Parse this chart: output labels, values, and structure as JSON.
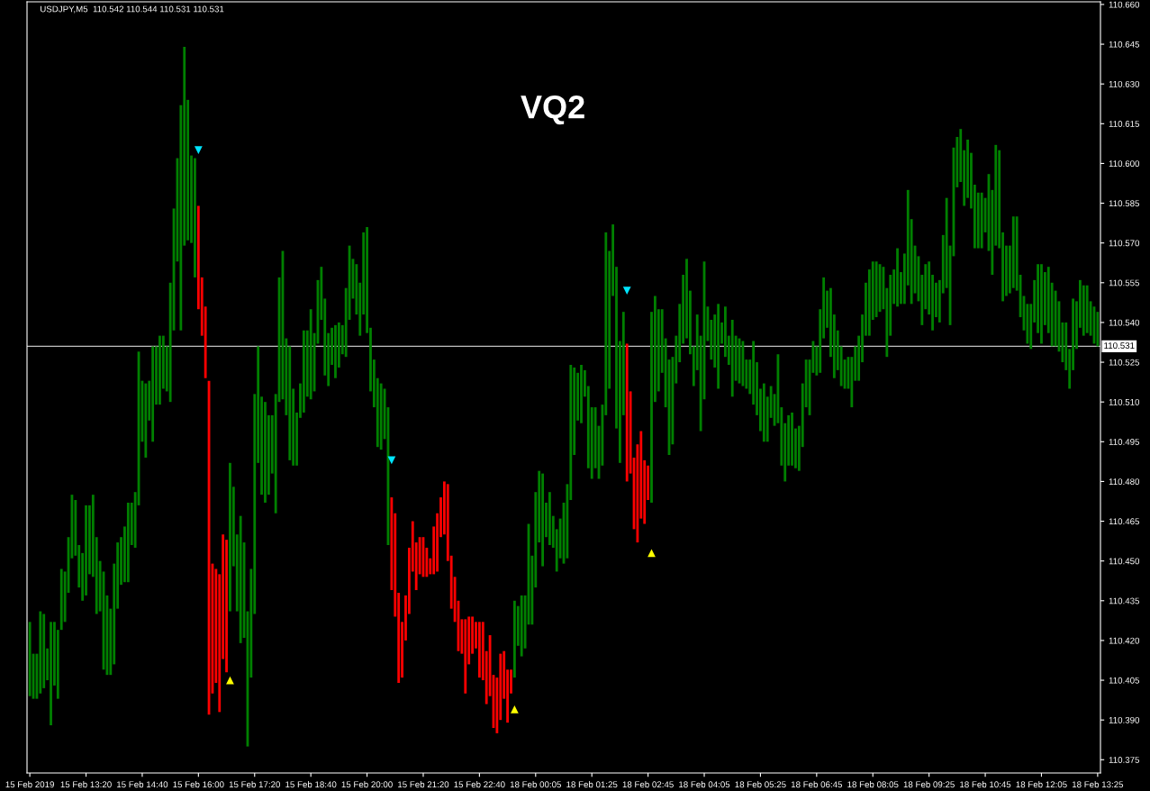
{
  "chart_data": {
    "type": "bar",
    "title": "VQ2",
    "annotations": [
      "USDJPY,M5  110.542 110.544 110.531 110.531"
    ],
    "categories": [
      "15 Feb 2019",
      null,
      null,
      null,
      null,
      null,
      null,
      null,
      null,
      null,
      null,
      null,
      null,
      null,
      null,
      null,
      "15 Feb 13:20",
      null,
      null,
      null,
      null,
      null,
      null,
      null,
      null,
      null,
      null,
      null,
      null,
      null,
      null,
      null,
      "15 Feb 14:40",
      null,
      null,
      null,
      null,
      null,
      null,
      null,
      null,
      null,
      null,
      null,
      null,
      null,
      null,
      null,
      "15 Feb 16:00",
      null,
      null,
      null,
      null,
      null,
      null,
      null,
      null,
      null,
      null,
      null,
      null,
      null,
      null,
      null,
      "15 Feb 17:20",
      null,
      null,
      null,
      null,
      null,
      null,
      null,
      null,
      null,
      null,
      null,
      null,
      null,
      null,
      null,
      "15 Feb 18:40",
      null,
      null,
      null,
      null,
      null,
      null,
      null,
      null,
      null,
      null,
      null,
      null,
      null,
      null,
      null,
      "15 Feb 20:00",
      null,
      null,
      null,
      null,
      null,
      null,
      null,
      null,
      null,
      null,
      null,
      null,
      null,
      null,
      null,
      "15 Feb 21:20",
      null,
      null,
      null,
      null,
      null,
      null,
      null,
      null,
      null,
      null,
      null,
      null,
      null,
      null,
      null,
      "15 Feb 22:40",
      null,
      null,
      null,
      null,
      null,
      null,
      null,
      null,
      null,
      null,
      null,
      null,
      null,
      null,
      null,
      "18 Feb 00:05",
      null,
      null,
      null,
      null,
      null,
      null,
      null,
      null,
      null,
      null,
      null,
      null,
      null,
      null,
      null,
      "18 Feb 01:25",
      null,
      null,
      null,
      null,
      null,
      null,
      null,
      null,
      null,
      null,
      null,
      null,
      null,
      null,
      null,
      "18 Feb 02:45",
      null,
      null,
      null,
      null,
      null,
      null,
      null,
      null,
      null,
      null,
      null,
      null,
      null,
      null,
      null,
      "18 Feb 04:05",
      null,
      null,
      null,
      null,
      null,
      null,
      null,
      null,
      null,
      null,
      null,
      null,
      null,
      null,
      null,
      "18 Feb 05:25",
      null,
      null,
      null,
      null,
      null,
      null,
      null,
      null,
      null,
      null,
      null,
      null,
      null,
      null,
      null,
      "18 Feb 06:45",
      null,
      null,
      null,
      null,
      null,
      null,
      null,
      null,
      null,
      null,
      null,
      null,
      null,
      null,
      null,
      "18 Feb 08:05",
      null,
      null,
      null,
      null,
      null,
      null,
      null,
      null,
      null,
      null,
      null,
      null,
      null,
      null,
      null,
      "18 Feb 09:25",
      null,
      null,
      null,
      null,
      null,
      null,
      null,
      null,
      null,
      null,
      null,
      null,
      null,
      null,
      null,
      "18 Feb 10:45",
      null,
      null,
      null,
      null,
      null,
      null,
      null,
      null,
      null,
      null,
      null,
      null,
      null,
      null,
      null,
      "18 Feb 12:05",
      null,
      null,
      null,
      null,
      null,
      null,
      null,
      null,
      null,
      null,
      null,
      null,
      null,
      null,
      null,
      "18 Feb 13:25"
    ],
    "series": [
      {
        "base": [
          110.399,
          110.398,
          110.398,
          110.4,
          110.402,
          110.405,
          110.388,
          110.403,
          110.398,
          110.424,
          110.427,
          110.438,
          110.451,
          110.452,
          110.44,
          110.435,
          110.437,
          110.445,
          110.444,
          110.43,
          110.431,
          110.409,
          110.407,
          110.407,
          110.411,
          110.432,
          110.441,
          110.442,
          110.442,
          110.456,
          110.455,
          110.471,
          110.495,
          110.489,
          110.503,
          110.495,
          110.509,
          110.509,
          110.515,
          110.514,
          110.51,
          110.537,
          110.563,
          110.537,
          110.569,
          110.571,
          110.57,
          110.557,
          110.545,
          110.535,
          110.519,
          110.392,
          110.4,
          110.404,
          110.393,
          110.413,
          110.408,
          110.431,
          110.448,
          110.431,
          110.419,
          110.421,
          110.38,
          110.406,
          110.43,
          110.487,
          110.475,
          110.472,
          110.475,
          110.483,
          110.468,
          110.51,
          110.511,
          110.505,
          110.488,
          110.486,
          110.486,
          110.504,
          110.506,
          110.512,
          110.511,
          110.514,
          110.532,
          110.541,
          110.52,
          110.516,
          110.524,
          110.519,
          110.523,
          110.528,
          110.527,
          110.541,
          110.549,
          110.543,
          110.535,
          110.543,
          110.536,
          110.514,
          110.508,
          110.493,
          110.492,
          110.496,
          110.456,
          110.439,
          110.429,
          110.404,
          110.406,
          110.42,
          110.43,
          110.446,
          110.439,
          110.445,
          110.444,
          110.444,
          110.445,
          110.445,
          110.446,
          110.459,
          110.46,
          110.45,
          110.432,
          110.427,
          110.416,
          110.415,
          110.4,
          110.411,
          110.415,
          110.417,
          110.406,
          110.405,
          110.396,
          110.399,
          110.387,
          110.385,
          110.39,
          110.398,
          110.389,
          110.4,
          110.406,
          110.418,
          110.414,
          110.417,
          110.426,
          110.426,
          110.44,
          110.457,
          110.448,
          110.459,
          110.456,
          110.455,
          110.446,
          110.451,
          110.449,
          110.451,
          110.473,
          110.49,
          110.503,
          110.502,
          110.512,
          110.485,
          110.481,
          110.485,
          110.481,
          110.486,
          110.505,
          110.515,
          110.55,
          110.5,
          110.487,
          110.505,
          110.48,
          110.483,
          110.462,
          110.457,
          110.466,
          110.464,
          110.473,
          110.472,
          110.51,
          110.514,
          110.521,
          110.508,
          110.49,
          110.494,
          110.517,
          110.525,
          110.532,
          110.534,
          110.528,
          110.516,
          110.522,
          110.499,
          110.511,
          110.533,
          110.526,
          110.523,
          110.515,
          110.532,
          110.527,
          110.524,
          110.512,
          110.518,
          110.517,
          110.516,
          110.515,
          110.513,
          110.509,
          110.505,
          110.499,
          110.495,
          110.495,
          110.504,
          110.501,
          110.502,
          110.486,
          110.48,
          110.486,
          110.486,
          110.485,
          110.484,
          110.493,
          110.508,
          110.505,
          110.521,
          110.52,
          110.521,
          110.534,
          110.538,
          110.527,
          110.519,
          110.522,
          110.516,
          110.515,
          110.515,
          110.508,
          110.518,
          110.518,
          110.525,
          110.535,
          110.535,
          110.541,
          110.542,
          110.544,
          110.545,
          110.527,
          110.535,
          110.547,
          110.546,
          110.547,
          110.547,
          110.554,
          110.547,
          110.551,
          110.548,
          110.539,
          110.545,
          110.543,
          110.537,
          110.542,
          110.54,
          110.551,
          110.553,
          110.539,
          110.565,
          110.591,
          110.593,
          110.584,
          110.587,
          110.583,
          110.568,
          110.568,
          110.568,
          110.574,
          110.567,
          110.558,
          110.569,
          110.568,
          110.548,
          110.55,
          110.551,
          110.553,
          110.552,
          110.542,
          110.537,
          110.532,
          110.53,
          110.54,
          110.536,
          110.532,
          110.539,
          110.536,
          110.531,
          110.531,
          110.529,
          110.525,
          110.522,
          110.515,
          110.522,
          110.53,
          110.538,
          110.535,
          110.536,
          110.535,
          110.532,
          110.531
        ],
        "values": [
          0.028,
          0.017,
          0.017,
          0.031,
          0.028,
          0.012,
          0.039,
          0.024,
          0.026,
          0.023,
          0.019,
          0.021,
          0.024,
          0.021,
          0.016,
          0.018,
          0.034,
          0.026,
          0.031,
          0.029,
          0.019,
          0.037,
          0.03,
          0.025,
          0.038,
          0.025,
          0.018,
          0.021,
          0.03,
          0.016,
          0.021,
          0.058,
          0.023,
          0.028,
          0.015,
          0.036,
          0.022,
          0.026,
          0.02,
          0.017,
          0.045,
          0.046,
          0.039,
          0.085,
          0.075,
          0.053,
          0.033,
          0.045,
          0.039,
          0.022,
          0.027,
          0.126,
          0.049,
          0.043,
          0.052,
          0.047,
          0.05,
          0.056,
          0.03,
          0.029,
          0.048,
          0.036,
          0.051,
          0.041,
          0.083,
          0.044,
          0.037,
          0.038,
          0.03,
          0.022,
          0.045,
          0.047,
          0.056,
          0.029,
          0.043,
          0.029,
          0.02,
          0.013,
          0.031,
          0.025,
          0.034,
          0.022,
          0.024,
          0.02,
          0.029,
          0.02,
          0.014,
          0.02,
          0.017,
          0.011,
          0.026,
          0.028,
          0.015,
          0.019,
          0.02,
          0.031,
          0.04,
          0.024,
          0.018,
          0.026,
          0.025,
          0.019,
          0.052,
          0.035,
          0.039,
          0.034,
          0.021,
          0.017,
          0.025,
          0.019,
          0.018,
          0.014,
          0.015,
          0.011,
          0.006,
          0.018,
          0.022,
          0.015,
          0.02,
          0.029,
          0.02,
          0.017,
          0.019,
          0.013,
          0.028,
          0.018,
          0.014,
          0.01,
          0.021,
          0.022,
          0.02,
          0.023,
          0.02,
          0.021,
          0.025,
          0.018,
          0.02,
          0.009,
          0.029,
          0.015,
          0.023,
          0.02,
          0.038,
          0.026,
          0.036,
          0.027,
          0.035,
          0.013,
          0.02,
          0.012,
          0.016,
          0.015,
          0.023,
          0.028,
          0.051,
          0.033,
          0.018,
          0.022,
          0.01,
          0.031,
          0.027,
          0.023,
          0.02,
          0.023,
          0.069,
          0.052,
          0.027,
          0.061,
          0.046,
          0.039,
          0.052,
          0.031,
          0.027,
          0.037,
          0.033,
          0.024,
          0.013,
          0.072,
          0.04,
          0.031,
          0.024,
          0.026,
          0.036,
          0.033,
          0.018,
          0.022,
          0.026,
          0.03,
          0.024,
          0.015,
          0.021,
          0.036,
          0.052,
          0.013,
          0.015,
          0.02,
          0.032,
          0.008,
          0.019,
          0.011,
          0.029,
          0.017,
          0.017,
          0.017,
          0.011,
          0.013,
          0.024,
          0.02,
          0.016,
          0.022,
          0.017,
          0.012,
          0.012,
          0.026,
          0.022,
          0.022,
          0.019,
          0.02,
          0.015,
          0.017,
          0.024,
          0.018,
          0.021,
          0.012,
          0.011,
          0.024,
          0.023,
          0.014,
          0.026,
          0.024,
          0.015,
          0.015,
          0.011,
          0.012,
          0.019,
          0.013,
          0.017,
          0.018,
          0.02,
          0.025,
          0.022,
          0.021,
          0.018,
          0.016,
          0.026,
          0.023,
          0.013,
          0.022,
          0.012,
          0.019,
          0.036,
          0.032,
          0.018,
          0.017,
          0.019,
          0.017,
          0.02,
          0.021,
          0.013,
          0.016,
          0.022,
          0.034,
          0.03,
          0.041,
          0.019,
          0.02,
          0.021,
          0.022,
          0.021,
          0.024,
          0.021,
          0.021,
          0.013,
          0.029,
          0.032,
          0.038,
          0.037,
          0.026,
          0.019,
          0.018,
          0.027,
          0.028,
          0.016,
          0.013,
          0.015,
          0.017,
          0.016,
          0.026,
          0.03,
          0.02,
          0.025,
          0.024,
          0.021,
          0.019,
          0.015,
          0.018,
          0.015,
          0.027,
          0.018,
          0.018,
          0.019,
          0.018,
          0.013,
          0.014,
          0.013
        ],
        "colors": [
          "#008000",
          "#008000",
          "#008000",
          "#008000",
          "#008000",
          "#008000",
          "#008000",
          "#008000",
          "#008000",
          "#008000",
          "#008000",
          "#008000",
          "#008000",
          "#008000",
          "#008000",
          "#008000",
          "#008000",
          "#008000",
          "#008000",
          "#008000",
          "#008000",
          "#008000",
          "#008000",
          "#008000",
          "#008000",
          "#008000",
          "#008000",
          "#008000",
          "#008000",
          "#008000",
          "#008000",
          "#008000",
          "#008000",
          "#008000",
          "#008000",
          "#008000",
          "#008000",
          "#008000",
          "#008000",
          "#008000",
          "#008000",
          "#008000",
          "#008000",
          "#008000",
          "#008000",
          "#008000",
          "#008000",
          "#008000",
          "#ff0000",
          "#ff0000",
          "#ff0000",
          "#ff0000",
          "#ff0000",
          "#ff0000",
          "#ff0000",
          "#ff0000",
          "#ff0000",
          "#008000",
          "#008000",
          "#008000",
          "#008000",
          "#008000",
          "#008000",
          "#008000",
          "#008000",
          "#008000",
          "#008000",
          "#008000",
          "#008000",
          "#008000",
          "#008000",
          "#008000",
          "#008000",
          "#008000",
          "#008000",
          "#008000",
          "#008000",
          "#008000",
          "#008000",
          "#008000",
          "#008000",
          "#008000",
          "#008000",
          "#008000",
          "#008000",
          "#008000",
          "#008000",
          "#008000",
          "#008000",
          "#008000",
          "#008000",
          "#008000",
          "#008000",
          "#008000",
          "#008000",
          "#008000",
          "#008000",
          "#008000",
          "#008000",
          "#008000",
          "#008000",
          "#008000",
          "#008000",
          "#ff0000",
          "#ff0000",
          "#ff0000",
          "#ff0000",
          "#ff0000",
          "#ff0000",
          "#ff0000",
          "#ff0000",
          "#ff0000",
          "#ff0000",
          "#ff0000",
          "#ff0000",
          "#ff0000",
          "#ff0000",
          "#ff0000",
          "#ff0000",
          "#ff0000",
          "#ff0000",
          "#ff0000",
          "#ff0000",
          "#ff0000",
          "#ff0000",
          "#ff0000",
          "#ff0000",
          "#ff0000",
          "#ff0000",
          "#ff0000",
          "#ff0000",
          "#ff0000",
          "#ff0000",
          "#ff0000",
          "#ff0000",
          "#ff0000",
          "#ff0000",
          "#ff0000",
          "#008000",
          "#008000",
          "#008000",
          "#008000",
          "#008000",
          "#008000",
          "#008000",
          "#008000",
          "#008000",
          "#008000",
          "#008000",
          "#008000",
          "#008000",
          "#008000",
          "#008000",
          "#008000",
          "#008000",
          "#008000",
          "#008000",
          "#008000",
          "#008000",
          "#008000",
          "#008000",
          "#008000",
          "#008000",
          "#008000",
          "#008000",
          "#008000",
          "#008000",
          "#008000",
          "#008000",
          "#008000",
          "#ff0000",
          "#ff0000",
          "#ff0000",
          "#ff0000",
          "#ff0000",
          "#ff0000",
          "#ff0000",
          "#008000",
          "#008000",
          "#008000",
          "#008000",
          "#008000",
          "#008000",
          "#008000",
          "#008000",
          "#008000",
          "#008000",
          "#008000",
          "#008000",
          "#008000",
          "#008000",
          "#008000",
          "#008000",
          "#008000",
          "#008000",
          "#008000",
          "#008000",
          "#008000",
          "#008000",
          "#008000",
          "#008000",
          "#008000",
          "#008000",
          "#008000",
          "#008000",
          "#008000",
          "#008000",
          "#008000",
          "#008000",
          "#008000",
          "#008000",
          "#008000",
          "#008000",
          "#008000",
          "#008000",
          "#008000",
          "#008000",
          "#008000",
          "#008000",
          "#008000",
          "#008000",
          "#008000",
          "#008000",
          "#008000",
          "#008000",
          "#008000",
          "#008000",
          "#008000",
          "#008000",
          "#008000",
          "#008000",
          "#008000",
          "#008000",
          "#008000",
          "#008000",
          "#008000",
          "#008000",
          "#008000",
          "#008000",
          "#008000",
          "#008000",
          "#008000",
          "#008000",
          "#008000",
          "#008000",
          "#008000",
          "#008000",
          "#008000",
          "#008000",
          "#008000",
          "#008000",
          "#008000",
          "#008000",
          "#008000",
          "#008000",
          "#008000",
          "#008000",
          "#008000",
          "#008000",
          "#008000",
          "#008000",
          "#008000",
          "#008000",
          "#008000",
          "#008000",
          "#008000",
          "#008000",
          "#008000",
          "#008000",
          "#008000",
          "#008000",
          "#008000",
          "#008000",
          "#008000",
          "#008000",
          "#008000",
          "#008000",
          "#008000",
          "#008000",
          "#008000",
          "#008000",
          "#008000",
          "#008000",
          "#008000",
          "#008000",
          "#008000",
          "#008000",
          "#008000",
          "#008000",
          "#008000",
          "#008000",
          "#008000",
          "#008000",
          "#008000",
          "#008000",
          "#008000",
          "#008000",
          "#008000",
          "#008000",
          "#008000",
          "#008000",
          "#008000",
          "#008000",
          "#008000",
          "#008000"
        ]
      },
      {
        "type": "scatter",
        "color": "#00e5ff",
        "marker": "triangle-down",
        "values": [
          null,
          null,
          null,
          null,
          null,
          null,
          null,
          null,
          null,
          null,
          null,
          null,
          null,
          null,
          null,
          null,
          null,
          null,
          null,
          null,
          null,
          null,
          null,
          null,
          null,
          null,
          null,
          null,
          null,
          null,
          null,
          null,
          null,
          null,
          null,
          null,
          null,
          null,
          null,
          null,
          null,
          null,
          null,
          null,
          null,
          null,
          null,
          null,
          110.605,
          null,
          null,
          null,
          null,
          null,
          null,
          null,
          null,
          null,
          null,
          null,
          null,
          null,
          null,
          null,
          null,
          null,
          null,
          null,
          null,
          null,
          null,
          null,
          null,
          null,
          null,
          null,
          null,
          null,
          null,
          null,
          null,
          null,
          null,
          null,
          null,
          null,
          null,
          null,
          null,
          null,
          null,
          null,
          null,
          null,
          null,
          null,
          null,
          null,
          null,
          null,
          null,
          null,
          null,
          110.488,
          null,
          null,
          null,
          null,
          null,
          null,
          null,
          null,
          null,
          null,
          null,
          null,
          null,
          null,
          null,
          null,
          null,
          null,
          null,
          null,
          null,
          null,
          null,
          null,
          null,
          null,
          null,
          null,
          null,
          null,
          null,
          null,
          null,
          null,
          null,
          null,
          null,
          null,
          null,
          null,
          null,
          null,
          null,
          null,
          null,
          null,
          null,
          null,
          null,
          null,
          null,
          null,
          null,
          null,
          null,
          null,
          null,
          null,
          null,
          null,
          null,
          null,
          null,
          null,
          null,
          null,
          110.552,
          null,
          null,
          null,
          null,
          null,
          null,
          null,
          null,
          null,
          null,
          null,
          null,
          null,
          null,
          null,
          null,
          null,
          null,
          null,
          null,
          null,
          null,
          null,
          null,
          null,
          null,
          null,
          null,
          null,
          null,
          null,
          null,
          null,
          null,
          null,
          null,
          null,
          null,
          null,
          null,
          null,
          null,
          null,
          null,
          null,
          null,
          null,
          null,
          null,
          null,
          null,
          null,
          null,
          null,
          null,
          null,
          null,
          null,
          null,
          null,
          null,
          null,
          null,
          null,
          null,
          null,
          null,
          null,
          null,
          null,
          null,
          null,
          null,
          null,
          null,
          null,
          null,
          null,
          null,
          null,
          null,
          null,
          null,
          null,
          null,
          null,
          null,
          null,
          null,
          null,
          null,
          null,
          null,
          null,
          null,
          null,
          null,
          null,
          null,
          null,
          null,
          null,
          null,
          null,
          null,
          null,
          null,
          null,
          null,
          null,
          null,
          null,
          null,
          null,
          null,
          null,
          null,
          null,
          null,
          null,
          null,
          null,
          null,
          null,
          null,
          null,
          null,
          null,
          null,
          null,
          null,
          null,
          null,
          null
        ]
      },
      {
        "type": "scatter",
        "color": "#ffff00",
        "marker": "triangle",
        "values": [
          null,
          null,
          null,
          null,
          null,
          null,
          null,
          null,
          null,
          null,
          null,
          null,
          null,
          null,
          null,
          null,
          null,
          null,
          null,
          null,
          null,
          null,
          null,
          null,
          null,
          null,
          null,
          null,
          null,
          null,
          null,
          null,
          null,
          null,
          null,
          null,
          null,
          null,
          null,
          null,
          null,
          null,
          null,
          null,
          null,
          null,
          null,
          null,
          null,
          null,
          null,
          null,
          null,
          null,
          null,
          null,
          null,
          110.405,
          null,
          null,
          null,
          null,
          null,
          null,
          null,
          null,
          null,
          null,
          null,
          null,
          null,
          null,
          null,
          null,
          null,
          null,
          null,
          null,
          null,
          null,
          null,
          null,
          null,
          null,
          null,
          null,
          null,
          null,
          null,
          null,
          null,
          null,
          null,
          null,
          null,
          null,
          null,
          null,
          null,
          null,
          null,
          null,
          null,
          null,
          null,
          null,
          null,
          null,
          null,
          null,
          null,
          null,
          null,
          null,
          null,
          null,
          null,
          null,
          null,
          null,
          null,
          null,
          null,
          null,
          null,
          null,
          null,
          null,
          null,
          null,
          null,
          null,
          null,
          null,
          null,
          null,
          null,
          null,
          110.394,
          null,
          null,
          null,
          null,
          null,
          null,
          null,
          null,
          null,
          null,
          null,
          null,
          null,
          null,
          null,
          null,
          null,
          null,
          null,
          null,
          null,
          null,
          null,
          null,
          null,
          null,
          null,
          null,
          null,
          null,
          null,
          null,
          null,
          null,
          null,
          null,
          null,
          null,
          110.453,
          null,
          null,
          null,
          null,
          null,
          null,
          null,
          null,
          null,
          null,
          null,
          null,
          null,
          null,
          null,
          null,
          null,
          null,
          null,
          null,
          null,
          null,
          null,
          null,
          null,
          null,
          null,
          null,
          null,
          null,
          null,
          null,
          null,
          null,
          null,
          null,
          null,
          null,
          null,
          null,
          null,
          null,
          null,
          null,
          null,
          null,
          null,
          null,
          null,
          null,
          null,
          null,
          null,
          null,
          null,
          null,
          null,
          null,
          null,
          null,
          null,
          null,
          null,
          null,
          null,
          null,
          null,
          null,
          null,
          null,
          null,
          null,
          null,
          null,
          null,
          null,
          null,
          null,
          null,
          null,
          null,
          null,
          null,
          null,
          null,
          null,
          null,
          null,
          null,
          null,
          null,
          null,
          null,
          null,
          null,
          null,
          null,
          null,
          null,
          null,
          null,
          null,
          null,
          null,
          null,
          null,
          null,
          null,
          null,
          null,
          null,
          null,
          null,
          null,
          null,
          null,
          null,
          null,
          null,
          null,
          null,
          null,
          null,
          null,
          null,
          null,
          null
        ]
      }
    ],
    "ylim": [
      110.37,
      110.661
    ],
    "yticks": [
      110.375,
      {
        "value": 110.39,
        "label": "110.390"
      },
      110.405,
      {
        "value": 110.42,
        "label": "110.420"
      },
      110.435,
      {
        "value": 110.45,
        "label": "110.450"
      },
      110.465,
      {
        "value": 110.48,
        "label": "110.480"
      },
      110.495,
      {
        "value": 110.51,
        "label": "110.510"
      },
      110.525,
      {
        "value": 110.54,
        "label": "110.540"
      },
      110.555,
      {
        "value": 110.57,
        "label": "110.570"
      },
      110.585,
      {
        "value": 110.6,
        "label": "110.600"
      },
      110.615,
      {
        "value": 110.63,
        "label": "110.630"
      },
      110.645,
      {
        "value": 110.66,
        "label": "110.660"
      }
    ],
    "ref_lines": [
      {
        "axis": "y",
        "value": 110.531,
        "label": "110.531",
        "color": "#c0c0c0"
      }
    ]
  }
}
